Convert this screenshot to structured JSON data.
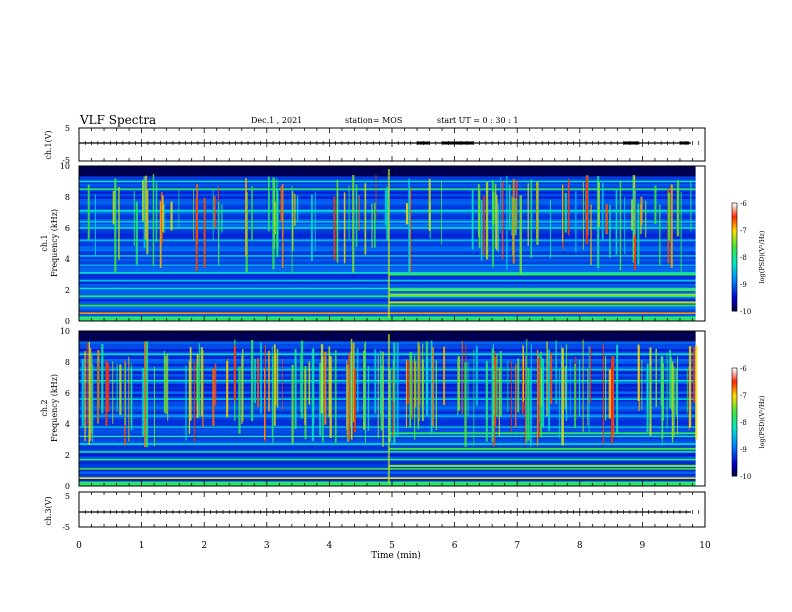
{
  "header": {
    "title": "VLF Spectra",
    "date": "Dec.1 , 2021",
    "station": "station= MOS",
    "start": "start UT = 0 : 30 : 1"
  },
  "chart_data": [
    {
      "type": "line",
      "id": "ch1-waveform",
      "ylabel": "ch.1(V)",
      "xlim": [
        0,
        10
      ],
      "ylim": [
        -5,
        5
      ],
      "yticks": [
        "5",
        "-5"
      ],
      "series": [
        {
          "values": [
            0,
            0
          ]
        }
      ]
    },
    {
      "type": "heatmap",
      "id": "ch1-spectrogram",
      "ylabel": "ch.1\nFrequency (kHz)",
      "xlim": [
        0,
        10
      ],
      "ylim": [
        0,
        10
      ],
      "yticks": [
        "0",
        "2",
        "4",
        "6",
        "8",
        "10"
      ],
      "data_end_min": 9.85,
      "transition_min": 4.95,
      "colorbar": {
        "label": "log(PSD)(V²/Hz)",
        "range": [
          -10,
          -6
        ],
        "ticks": [
          "-6",
          "-7",
          "-8",
          "-9",
          "-10"
        ]
      }
    },
    {
      "type": "heatmap",
      "id": "ch2-spectrogram",
      "ylabel": "ch.2\nFrequency (kHz)",
      "xlim": [
        0,
        10
      ],
      "ylim": [
        0,
        10
      ],
      "yticks": [
        "0",
        "2",
        "4",
        "6",
        "8",
        "10"
      ],
      "data_end_min": 9.85,
      "transition_min": 4.95,
      "colorbar": {
        "label": "log(PSD)(V²/Hz)",
        "range": [
          -10,
          -6
        ],
        "ticks": [
          "-6",
          "-7",
          "-8",
          "-9",
          "-10"
        ]
      }
    },
    {
      "type": "line",
      "id": "ch3-waveform",
      "ylabel": "ch.3(V)",
      "xlim": [
        0,
        10
      ],
      "ylim": [
        -5,
        5
      ],
      "yticks": [
        "5",
        "-5"
      ],
      "series": [
        {
          "values": [
            0,
            0
          ]
        }
      ]
    }
  ],
  "xaxis": {
    "label": "Time (min)",
    "ticks": [
      "0",
      "1",
      "2",
      "3",
      "4",
      "5",
      "6",
      "7",
      "8",
      "9",
      "10"
    ]
  }
}
